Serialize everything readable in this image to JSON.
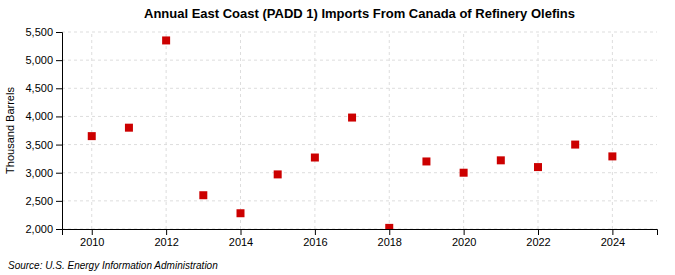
{
  "chart_data": {
    "type": "scatter",
    "title": "Annual East Coast (PADD 1) Imports From Canada of Refinery Olefins",
    "y_label": "Thousand Barrels",
    "source": "Source: U.S. Energy Information Administration",
    "x": [
      2010,
      2011,
      2012,
      2013,
      2014,
      2015,
      2016,
      2017,
      2018,
      2019,
      2020,
      2021,
      2022,
      2023,
      2024
    ],
    "values": [
      3650,
      3800,
      5350,
      2600,
      2280,
      2970,
      3270,
      3980,
      2020,
      3200,
      3000,
      3220,
      3100,
      3500,
      3290
    ],
    "color": "#cc0000",
    "marker": "square",
    "xlim": [
      2009.2,
      2025.2
    ],
    "xticks": [
      2010,
      2012,
      2014,
      2016,
      2018,
      2020,
      2022,
      2024
    ],
    "ylim": [
      2000,
      5500
    ],
    "yticks": [
      {
        "value": 2000,
        "label": "2,000"
      },
      {
        "value": 2500,
        "label": "2,500"
      },
      {
        "value": 3000,
        "label": "3,000"
      },
      {
        "value": 3500,
        "label": "3,500"
      },
      {
        "value": 4000,
        "label": "4,000"
      },
      {
        "value": 4500,
        "label": "4,500"
      },
      {
        "value": 5000,
        "label": "5,000"
      },
      {
        "value": 5500,
        "label": "5,500"
      }
    ],
    "grid": true
  }
}
